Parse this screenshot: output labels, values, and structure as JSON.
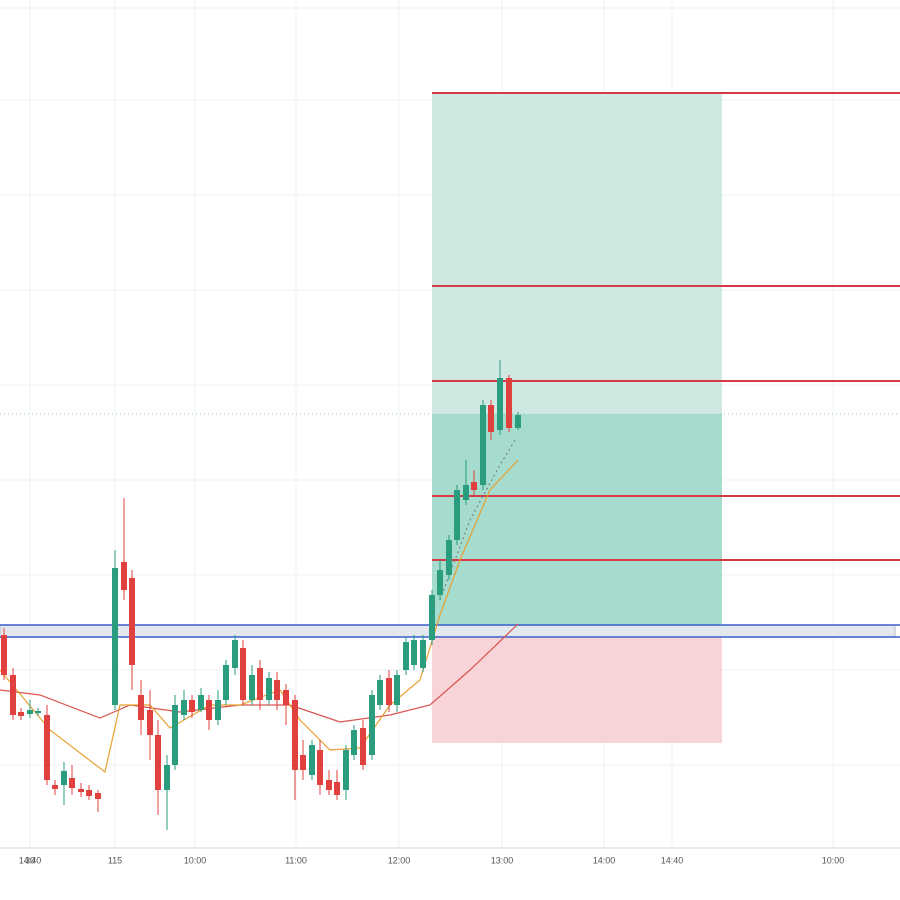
{
  "chart_data": {
    "type": "candlestick",
    "x": [
      4,
      13,
      21,
      30,
      38,
      47,
      55,
      64,
      72,
      81,
      89,
      98,
      115,
      124,
      132,
      141,
      150,
      158,
      167,
      175,
      184,
      192,
      201,
      209,
      218,
      226,
      235,
      243,
      252,
      260,
      269,
      277,
      286,
      295,
      303,
      312,
      320,
      329,
      337,
      346,
      354,
      363,
      372,
      380,
      389,
      397,
      406,
      414,
      423,
      432,
      440,
      449,
      457,
      466,
      474,
      483,
      491,
      500,
      509,
      518
    ],
    "open": [
      215,
      175,
      138,
      136,
      137,
      135,
      65,
      65,
      72,
      61,
      60,
      57,
      145,
      288,
      272,
      155,
      140,
      115,
      60,
      85,
      135,
      150,
      140,
      150,
      130,
      150,
      182,
      202,
      150,
      182,
      150,
      170,
      160,
      150,
      95,
      75,
      100,
      70,
      68,
      60,
      95,
      122,
      95,
      145,
      172,
      145,
      180,
      185,
      182,
      210,
      255,
      275,
      310,
      350,
      368,
      365,
      445,
      420,
      472,
      422
    ],
    "high": [
      222,
      182,
      142,
      150,
      142,
      145,
      70,
      88,
      85,
      67,
      65,
      60,
      300,
      352,
      280,
      170,
      160,
      130,
      95,
      155,
      160,
      155,
      162,
      155,
      160,
      190,
      215,
      210,
      185,
      190,
      178,
      178,
      166,
      155,
      110,
      110,
      110,
      80,
      80,
      105,
      125,
      130,
      160,
      175,
      180,
      180,
      212,
      215,
      215,
      260,
      290,
      315,
      365,
      390,
      380,
      450,
      450,
      490,
      475,
      438
    ],
    "low": [
      170,
      130,
      130,
      132,
      134,
      65,
      55,
      45,
      55,
      53,
      50,
      38,
      140,
      250,
      160,
      115,
      90,
      35,
      20,
      80,
      130,
      132,
      138,
      120,
      125,
      145,
      175,
      145,
      145,
      140,
      145,
      140,
      125,
      50,
      70,
      70,
      55,
      55,
      50,
      50,
      90,
      80,
      90,
      140,
      138,
      138,
      175,
      180,
      178,
      205,
      250,
      270,
      305,
      345,
      355,
      360,
      410,
      415,
      418,
      420
    ],
    "close": [
      175,
      135,
      134,
      140,
      139,
      70,
      61,
      79,
      62,
      58,
      54,
      51,
      282,
      260,
      185,
      130,
      115,
      60,
      85,
      145,
      150,
      138,
      155,
      130,
      150,
      185,
      210,
      150,
      175,
      150,
      172,
      150,
      145,
      80,
      80,
      105,
      65,
      60,
      55,
      100,
      120,
      85,
      155,
      170,
      145,
      175,
      208,
      210,
      210,
      255,
      280,
      310,
      360,
      365,
      360,
      445,
      418,
      472,
      422,
      435
    ],
    "up_color": "#2a9d7f",
    "down_color": "#e0413f",
    "xlim": [
      0,
      900
    ],
    "ylim": [
      0,
      850
    ],
    "xticks": [
      {
        "value": 30,
        "label": "14:40"
      },
      115,
      {
        "value": 195,
        "label": "10:00"
      },
      {
        "value": 296,
        "label": "11:00"
      },
      {
        "value": 399,
        "label": "12:00"
      },
      {
        "value": 502,
        "label": "13:00"
      },
      {
        "value": 604,
        "label": "14:00"
      },
      {
        "value": 672,
        "label": "14:40"
      },
      30,
      {
        "value": 833,
        "label": "10:00"
      }
    ],
    "grid": true
  }
}
